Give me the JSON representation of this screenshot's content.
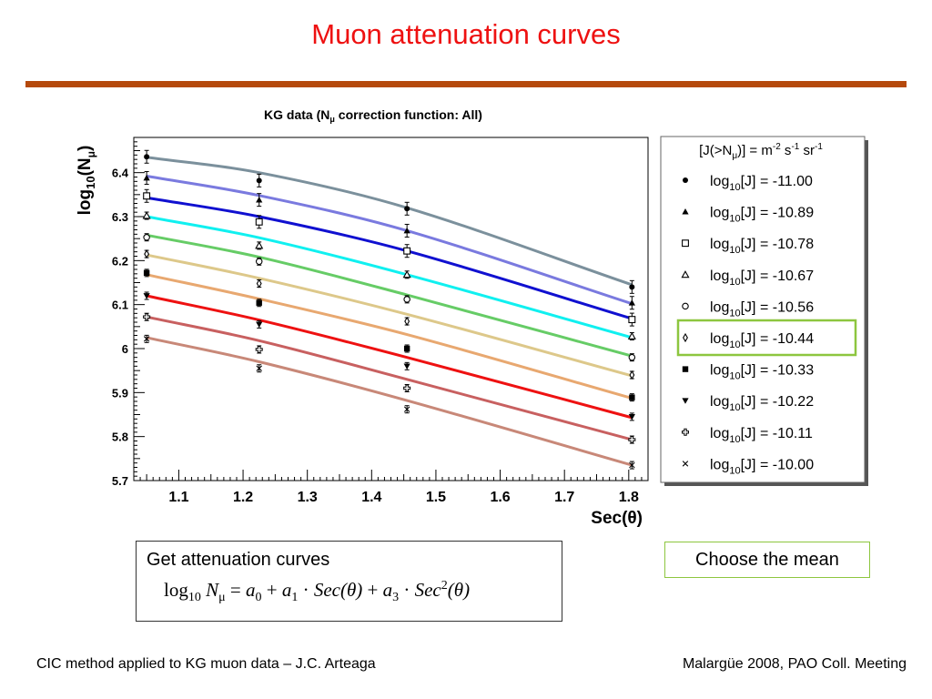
{
  "slide": {
    "title": "Muon attenuation curves",
    "formula_box": {
      "heading": "Get attenuation curves",
      "lhs_log": "log",
      "lhs_log_base": "10",
      "lhs_var": "N",
      "lhs_var_sub": "μ",
      "rhs_a0": "a",
      "rhs_a0_sub": "0",
      "rhs_a1": "a",
      "rhs_a1_sub": "1",
      "rhs_sec1": "Sec(θ)",
      "rhs_a3": "a",
      "rhs_a3_sub": "3",
      "rhs_sec2": "Sec",
      "rhs_sec2_sup": "2",
      "rhs_sec2_arg": "(θ)"
    },
    "note": "Choose the mean",
    "footer_left": "CIC method applied to KG muon data – J.C. Arteaga",
    "footer_right": "Malargüe 2008, PAO Coll. Meeting"
  },
  "chart_data": {
    "type": "line",
    "title": "KG data (Nμ correction function: All)",
    "xlabel": "Sec(θ)",
    "ylabel": "log10(Nμ)",
    "xlim": [
      1.03,
      1.83
    ],
    "ylim": [
      5.7,
      6.48
    ],
    "xticks": [
      "1.1",
      "1.2",
      "1.3",
      "1.4",
      "1.5",
      "1.6",
      "1.7",
      "1.8"
    ],
    "yticks": [
      "5.7",
      "5.8",
      "5.9",
      "6",
      "6.1",
      "6.2",
      "6.3",
      "6.4"
    ],
    "grid": false,
    "legend_placement": "right",
    "legend_title": "[J(>Nμ)] = m-2 s-1 sr-1",
    "highlighted_series": "log10[J] = -10.44",
    "x_points": [
      1.05,
      1.225,
      1.455,
      1.805
    ],
    "series": [
      {
        "name": "log10[J] = -11.00",
        "marker": "filled-circle",
        "color": "#7b909c",
        "fit": [
          6.435,
          6.4,
          6.32,
          6.145
        ],
        "points": [
          6.436,
          6.382,
          6.318,
          6.14
        ]
      },
      {
        "name": "log10[J] = -10.89",
        "marker": "filled-triangle",
        "color": "#7a7adf",
        "fit": [
          6.392,
          6.348,
          6.268,
          6.102
        ],
        "points": [
          6.388,
          6.338,
          6.268,
          6.104
        ]
      },
      {
        "name": "log10[J] = -10.78",
        "marker": "open-square",
        "color": "#1010d0",
        "fit": [
          6.343,
          6.3,
          6.222,
          6.068
        ],
        "points": [
          6.347,
          6.288,
          6.222,
          6.066
        ]
      },
      {
        "name": "log10[J] = -10.67",
        "marker": "open-triangle",
        "color": "#10f0f0",
        "fit": [
          6.3,
          6.252,
          6.168,
          6.025
        ],
        "points": [
          6.302,
          6.234,
          6.168,
          6.028
        ]
      },
      {
        "name": "log10[J] = -10.56",
        "marker": "open-circle",
        "color": "#66cc66",
        "fit": [
          6.258,
          6.208,
          6.122,
          5.983
        ],
        "points": [
          6.253,
          6.198,
          6.112,
          5.98
        ]
      },
      {
        "name": "log10[J] = -10.44",
        "marker": "open-diamond",
        "color": "#ddc88a",
        "fit": [
          6.213,
          6.16,
          6.078,
          5.938
        ],
        "points": [
          6.215,
          6.148,
          6.062,
          5.94
        ]
      },
      {
        "name": "log10[J] = -10.33",
        "marker": "filled-square",
        "color": "#e8a870",
        "fit": [
          6.168,
          6.113,
          6.032,
          5.887
        ],
        "points": [
          6.172,
          6.104,
          6.0,
          5.889
        ]
      },
      {
        "name": "log10[J] = -10.22",
        "marker": "filled-down-triangle",
        "color": "#ee1111",
        "fit": [
          6.12,
          6.065,
          5.98,
          5.843
        ],
        "points": [
          6.12,
          6.055,
          5.96,
          5.845
        ]
      },
      {
        "name": "log10[J] = -10.11",
        "marker": "open-cross",
        "color": "#c86060",
        "fit": [
          6.072,
          6.018,
          5.93,
          5.793
        ],
        "points": [
          6.072,
          5.998,
          5.91,
          5.793
        ]
      },
      {
        "name": "log10[J] = -10.00",
        "marker": "x-cross",
        "color": "#c88878",
        "fit": [
          6.025,
          5.97,
          5.882,
          5.735
        ],
        "points": [
          6.022,
          5.955,
          5.862,
          5.735
        ]
      }
    ]
  }
}
